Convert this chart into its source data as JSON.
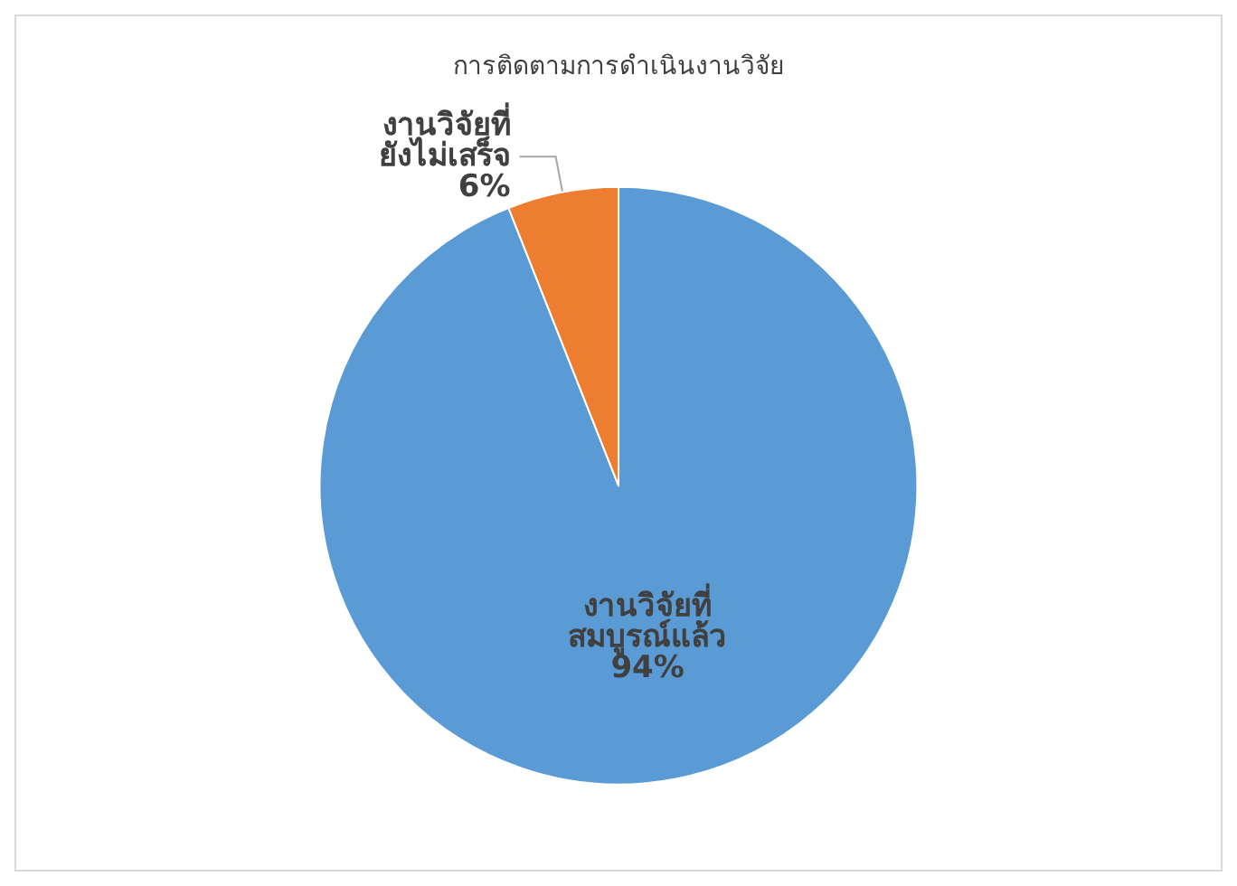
{
  "chart_data": {
    "type": "pie",
    "title": "การติดตามการดำเนินงานวิจัย",
    "categories": [
      "งานวิจัยที่\nสมบูรณ์แล้ว",
      "งานวิจัยที่\nยังไม่เสร็จ"
    ],
    "values": [
      94,
      6
    ],
    "colors": [
      "#5b9bd5",
      "#ed7d31"
    ],
    "value_labels": [
      "94%",
      "6%"
    ],
    "legend": false
  }
}
